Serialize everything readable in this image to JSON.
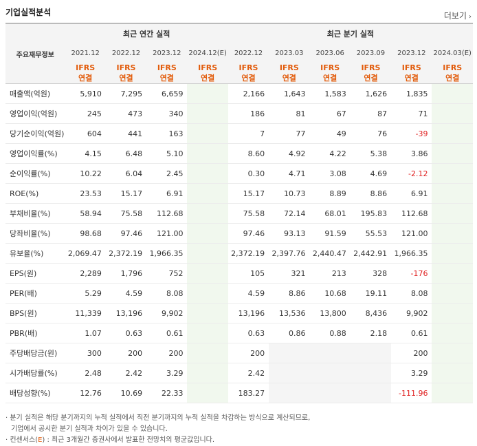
{
  "section_title": "기업실적분석",
  "more_label": "더보기",
  "more_icon": "chevron-right-icon",
  "header": {
    "corner_label": "주요재무정보",
    "annual_group": "최근 연간 실적",
    "quarterly_group": "최근 분기 실적",
    "annual_periods": [
      "2021.12",
      "2022.12",
      "2023.12",
      "2024.12(E)"
    ],
    "quarterly_periods": [
      "2022.12",
      "2023.03",
      "2023.06",
      "2023.09",
      "2023.12",
      "2024.03(E)"
    ],
    "basis_line1": "IFRS",
    "basis_line2": "연결"
  },
  "rows": [
    {
      "label": "매출액(억원)",
      "annual": [
        "5,910",
        "7,295",
        "6,659",
        ""
      ],
      "quarterly": [
        "2,166",
        "1,643",
        "1,583",
        "1,626",
        "1,835",
        ""
      ]
    },
    {
      "label": "영업이익(억원)",
      "annual": [
        "245",
        "473",
        "340",
        ""
      ],
      "quarterly": [
        "186",
        "81",
        "67",
        "87",
        "71",
        ""
      ]
    },
    {
      "label": "당기순이익(억원)",
      "annual": [
        "604",
        "441",
        "163",
        ""
      ],
      "quarterly": [
        "7",
        "77",
        "49",
        "76",
        "-39",
        ""
      ]
    },
    {
      "label": "영업이익률(%)",
      "annual": [
        "4.15",
        "6.48",
        "5.10",
        ""
      ],
      "quarterly": [
        "8.60",
        "4.92",
        "4.22",
        "5.38",
        "3.86",
        ""
      ]
    },
    {
      "label": "순이익률(%)",
      "annual": [
        "10.22",
        "6.04",
        "2.45",
        ""
      ],
      "quarterly": [
        "0.30",
        "4.71",
        "3.08",
        "4.69",
        "-2.12",
        ""
      ]
    },
    {
      "label": "ROE(%)",
      "annual": [
        "23.53",
        "15.17",
        "6.91",
        ""
      ],
      "quarterly": [
        "15.17",
        "10.73",
        "8.89",
        "8.86",
        "6.91",
        ""
      ]
    },
    {
      "label": "부채비율(%)",
      "annual": [
        "58.94",
        "75.58",
        "112.68",
        ""
      ],
      "quarterly": [
        "75.58",
        "72.14",
        "68.01",
        "195.83",
        "112.68",
        ""
      ]
    },
    {
      "label": "당좌비율(%)",
      "annual": [
        "98.68",
        "97.46",
        "121.00",
        ""
      ],
      "quarterly": [
        "97.46",
        "93.13",
        "91.59",
        "55.53",
        "121.00",
        ""
      ]
    },
    {
      "label": "유보율(%)",
      "annual": [
        "2,069.47",
        "2,372.19",
        "1,966.35",
        ""
      ],
      "quarterly": [
        "2,372.19",
        "2,397.76",
        "2,440.47",
        "2,442.91",
        "1,966.35",
        ""
      ]
    },
    {
      "label": "EPS(원)",
      "annual": [
        "2,289",
        "1,796",
        "752",
        ""
      ],
      "quarterly": [
        "105",
        "321",
        "213",
        "328",
        "-176",
        ""
      ]
    },
    {
      "label": "PER(배)",
      "annual": [
        "5.29",
        "4.59",
        "8.08",
        ""
      ],
      "quarterly": [
        "4.59",
        "8.86",
        "10.68",
        "19.11",
        "8.08",
        ""
      ]
    },
    {
      "label": "BPS(원)",
      "annual": [
        "11,339",
        "13,196",
        "9,902",
        ""
      ],
      "quarterly": [
        "13,196",
        "13,536",
        "13,800",
        "8,436",
        "9,902",
        ""
      ]
    },
    {
      "label": "PBR(배)",
      "annual": [
        "1.07",
        "0.63",
        "0.61",
        ""
      ],
      "quarterly": [
        "0.63",
        "0.86",
        "0.88",
        "2.18",
        "0.61",
        ""
      ]
    },
    {
      "label": "주당배당금(원)",
      "annual": [
        "300",
        "200",
        "200",
        ""
      ],
      "quarterly": [
        "200",
        "",
        "",
        "",
        "200",
        ""
      ]
    },
    {
      "label": "시가배당률(%)",
      "annual": [
        "2.48",
        "2.42",
        "3.29",
        ""
      ],
      "quarterly": [
        "2.42",
        "",
        "",
        "",
        "3.29",
        ""
      ]
    },
    {
      "label": "배당성향(%)",
      "annual": [
        "12.76",
        "10.69",
        "22.33",
        ""
      ],
      "quarterly": [
        "183.27",
        "",
        "",
        "",
        "-111.96",
        ""
      ]
    }
  ],
  "notes": {
    "line1": "· 분기 실적은 해당 분기까지의 누적 실적에서 직전 분기까지의 누적 실적을 차감하는 방식으로 계산되므로,",
    "line2": "기업에서 공시한 분기 실적과 차이가 있을 수 있습니다.",
    "line3_prefix": "· 컨센서스(",
    "line3_mark": "E",
    "line3_suffix": ") : 최근 3개월간 증권사에서 발표한 전망치의 평균값입니다."
  },
  "colors": {
    "accent": "#e25a09",
    "negative": "#e02020",
    "estimate_bg": "#f1f8ee"
  }
}
